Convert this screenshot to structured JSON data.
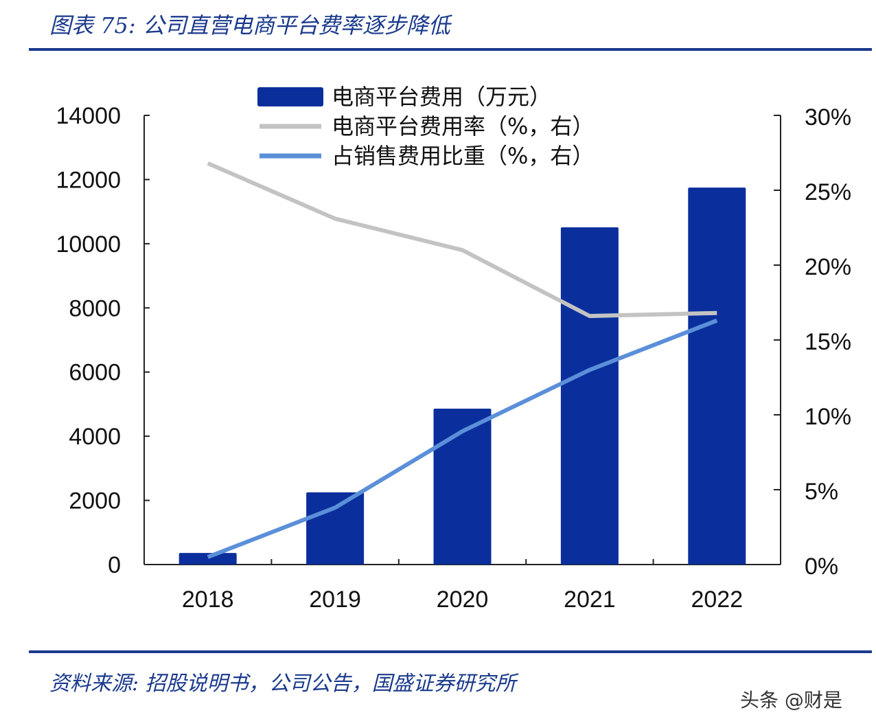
{
  "title": "图表 75:  公司直营电商平台费率逐步降低",
  "source": "资料来源:  招股说明书，公司公告，国盛证券研究所",
  "watermark": "头条 @财是",
  "chart_data": {
    "type": "bar",
    "title": "公司直营电商平台费率逐步降低",
    "categories": [
      "2018",
      "2019",
      "2020",
      "2021",
      "2022"
    ],
    "series": [
      {
        "name": "电商平台费用（万元）",
        "type": "bar",
        "axis": "left",
        "color": "#0a2f9c",
        "values": [
          360,
          2250,
          4860,
          10510,
          11750
        ]
      },
      {
        "name": "电商平台费用率（%，右）",
        "type": "line",
        "axis": "right",
        "color": "#c3c3c3",
        "values": [
          26.8,
          23.1,
          21.0,
          16.6,
          16.8
        ]
      },
      {
        "name": "占销售费用比重（%，右）",
        "type": "line",
        "axis": "right",
        "color": "#5b8fd9",
        "values": [
          0.5,
          3.8,
          8.9,
          13.0,
          16.3
        ]
      }
    ],
    "left_axis": {
      "ylim": [
        0,
        14000
      ],
      "ticks": [
        "0",
        "2000",
        "4000",
        "6000",
        "8000",
        "10000",
        "12000",
        "14000"
      ]
    },
    "right_axis": {
      "ylim": [
        0,
        30
      ],
      "ticks": [
        "0%",
        "5%",
        "10%",
        "15%",
        "20%",
        "25%",
        "30%"
      ]
    },
    "legend_position": "top-center",
    "grid": false
  }
}
